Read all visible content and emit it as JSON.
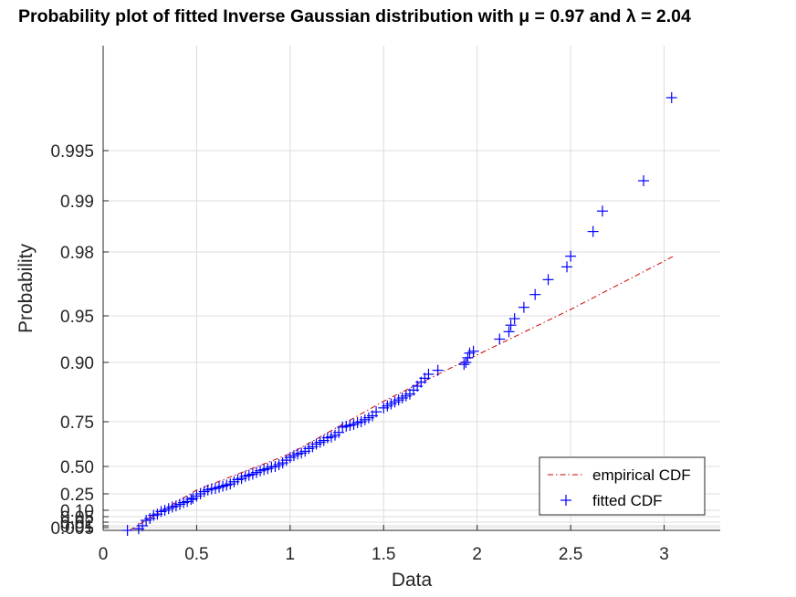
{
  "chart_data": {
    "type": "scatter",
    "title": "Probability plot of fitted Inverse Gaussian distribution with μ = 0.97 and λ = 2.04",
    "xlabel": "Data",
    "ylabel": "Probability",
    "xlim": [
      0,
      3.3
    ],
    "x_ticks": [
      0,
      0.5,
      1,
      1.5,
      2,
      2.5,
      3
    ],
    "x_tick_labels": [
      "0",
      "0.5",
      "1",
      "1.5",
      "2",
      "2.5",
      "3"
    ],
    "y_scale": "probability (nonlinear)",
    "y_ticks": [
      0.005,
      0.01,
      0.02,
      0.05,
      0.1,
      0.25,
      0.5,
      0.75,
      0.9,
      0.95,
      0.98,
      0.99,
      0.995
    ],
    "y_tick_labels": [
      "0.005",
      "0.01",
      "0.02",
      "0.05",
      "0.10",
      "0.25",
      "0.50",
      "0.75",
      "0.90",
      "0.95",
      "0.98",
      "0.99",
      "0.995"
    ],
    "grid": true,
    "legend_position": "bottom-right",
    "series": [
      {
        "name": "empirical CDF",
        "style": "dash-dot line",
        "color": "#cc0000",
        "x": [
          0.14,
          0.5,
          1.0,
          1.5,
          2.0,
          2.5,
          3.05
        ],
        "y": [
          0.0,
          0.285,
          0.571,
          0.802,
          0.908,
          0.953,
          0.978
        ]
      },
      {
        "name": "fitted CDF",
        "style": "plus markers",
        "color": "#0000ff",
        "x": [
          0.13,
          0.19,
          0.21,
          0.23,
          0.25,
          0.27,
          0.29,
          0.31,
          0.33,
          0.35,
          0.37,
          0.39,
          0.41,
          0.43,
          0.45,
          0.47,
          0.48,
          0.5,
          0.52,
          0.54,
          0.56,
          0.58,
          0.6,
          0.62,
          0.64,
          0.66,
          0.68,
          0.7,
          0.72,
          0.74,
          0.76,
          0.78,
          0.8,
          0.82,
          0.84,
          0.86,
          0.88,
          0.9,
          0.92,
          0.94,
          0.96,
          0.98,
          1.0,
          1.02,
          1.04,
          1.06,
          1.08,
          1.1,
          1.12,
          1.14,
          1.16,
          1.18,
          1.2,
          1.22,
          1.24,
          1.26,
          1.28,
          1.3,
          1.32,
          1.34,
          1.36,
          1.38,
          1.4,
          1.42,
          1.44,
          1.46,
          1.5,
          1.52,
          1.54,
          1.56,
          1.58,
          1.6,
          1.62,
          1.64,
          1.66,
          1.68,
          1.7,
          1.72,
          1.74,
          1.79,
          1.93,
          1.94,
          1.95,
          1.96,
          1.98,
          2.12,
          2.17,
          2.18,
          2.2,
          2.25,
          2.31,
          2.38,
          2.48,
          2.5,
          2.62,
          2.67,
          2.89,
          3.04
        ],
        "y": [
          0.0,
          0.003,
          0.01,
          0.03,
          0.04,
          0.06,
          0.07,
          0.09,
          0.1,
          0.115,
          0.13,
          0.14,
          0.155,
          0.17,
          0.18,
          0.2,
          0.21,
          0.23,
          0.25,
          0.27,
          0.285,
          0.295,
          0.3,
          0.31,
          0.32,
          0.33,
          0.34,
          0.36,
          0.38,
          0.39,
          0.41,
          0.42,
          0.43,
          0.445,
          0.46,
          0.47,
          0.48,
          0.495,
          0.5,
          0.51,
          0.52,
          0.535,
          0.55,
          0.56,
          0.57,
          0.575,
          0.585,
          0.6,
          0.61,
          0.625,
          0.635,
          0.645,
          0.66,
          0.665,
          0.675,
          0.69,
          0.72,
          0.725,
          0.73,
          0.735,
          0.745,
          0.75,
          0.755,
          0.76,
          0.765,
          0.775,
          0.785,
          0.79,
          0.795,
          0.8,
          0.805,
          0.81,
          0.815,
          0.82,
          0.83,
          0.84,
          0.85,
          0.86,
          0.87,
          0.88,
          0.895,
          0.9,
          0.905,
          0.91,
          0.912,
          0.925,
          0.933,
          0.94,
          0.947,
          0.954,
          0.96,
          0.967,
          0.973,
          0.978,
          0.984,
          0.988,
          0.992,
          0.998
        ]
      }
    ]
  }
}
